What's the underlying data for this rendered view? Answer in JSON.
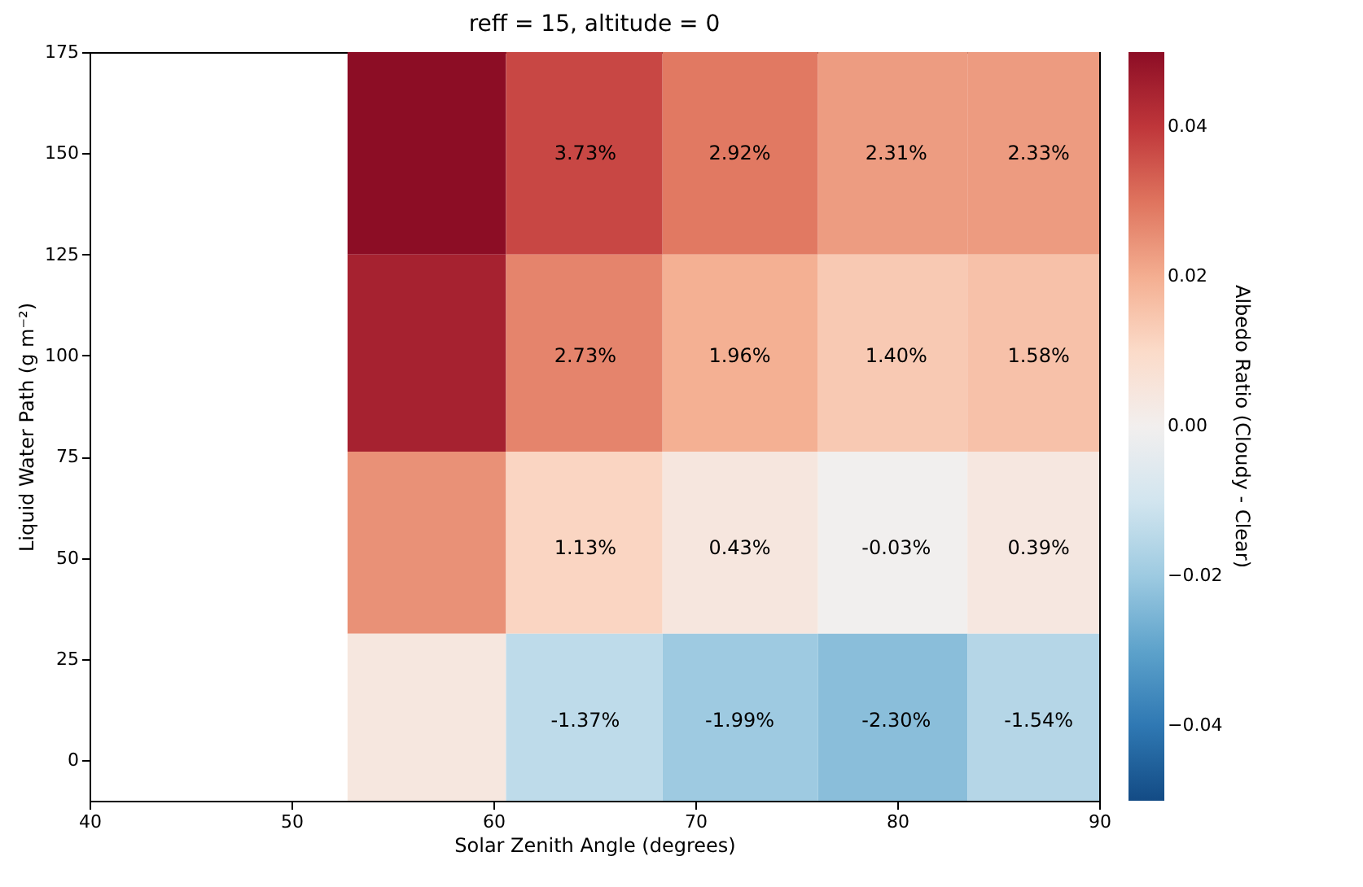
{
  "chart_data": {
    "type": "heatmap",
    "title": "reff = 15, altitude = 0",
    "xlabel": "Solar Zenith Angle (degrees)",
    "ylabel": "Liquid Water Path (g m⁻²)",
    "clabel": "Albedo Ratio (Cloudy - Clear)",
    "x": [
      56.7,
      64.55,
      72.2,
      79.95,
      87
    ],
    "y": [
      150,
      100,
      52.5,
      10
    ],
    "cells": [
      [
        0.05,
        0.0373,
        0.0292,
        0.0231,
        0.0233
      ],
      [
        0.045,
        0.0273,
        0.0196,
        0.014,
        0.0158
      ],
      [
        0.025,
        0.0113,
        0.0043,
        -0.0003,
        0.0039
      ],
      [
        0.004,
        -0.0137,
        -0.0199,
        -0.023,
        -0.0154
      ]
    ],
    "cell_labels": [
      [
        null,
        "3.73%",
        "2.92%",
        "2.31%",
        "2.33%"
      ],
      [
        null,
        "2.73%",
        "1.96%",
        "1.40%",
        "1.58%"
      ],
      [
        null,
        "1.13%",
        "0.43%",
        "-0.03%",
        "0.39%"
      ],
      [
        null,
        "-1.37%",
        "-1.99%",
        "-2.30%",
        "-1.54%"
      ]
    ],
    "xlim": [
      40,
      90
    ],
    "xticks": [
      40,
      50,
      60,
      70,
      80,
      90
    ],
    "ylim": [
      -10,
      175
    ],
    "yticks": [
      0,
      25,
      50,
      75,
      100,
      125,
      150,
      175
    ],
    "clim": [
      -0.05,
      0.05
    ],
    "cticks": [
      {
        "value": -0.04,
        "label": "−0.04"
      },
      {
        "value": -0.02,
        "label": "−0.02"
      },
      {
        "value": 0,
        "label": "0.00"
      },
      {
        "value": 0.02,
        "label": "0.02"
      },
      {
        "value": 0.04,
        "label": "0.04"
      }
    ],
    "grid": false
  }
}
